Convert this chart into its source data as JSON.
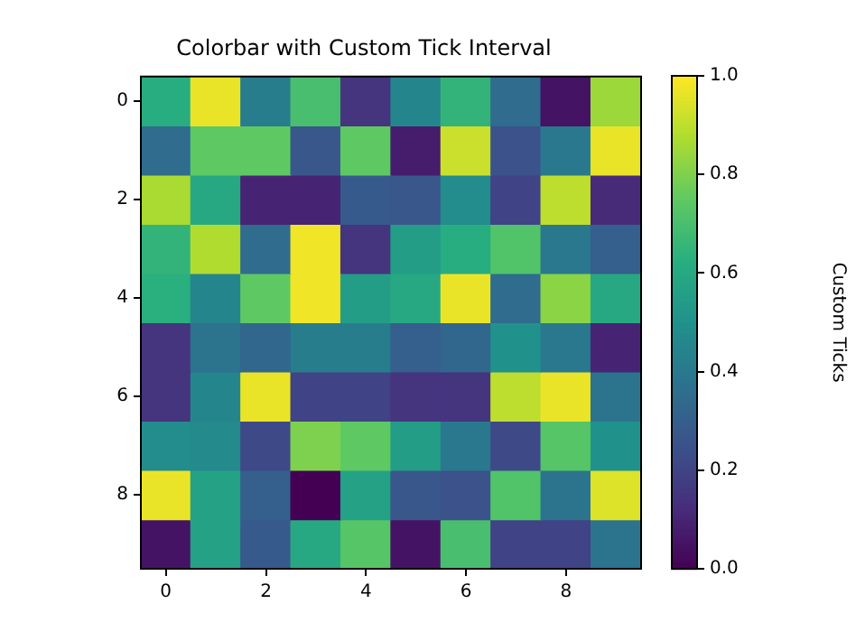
{
  "chart_data": {
    "type": "heatmap",
    "title": "Colorbar with Custom Tick Interval",
    "clabel": "Custom Ticks",
    "categories": [
      "0",
      null,
      "2",
      null,
      "4",
      null,
      "6",
      null,
      "8",
      null
    ],
    "y_categories": [
      "0",
      null,
      "2",
      null,
      "4",
      null,
      "6",
      null,
      "8",
      null
    ],
    "cells": [
      [
        0.62,
        0.97,
        0.42,
        0.7,
        0.15,
        0.45,
        0.65,
        0.35,
        0.05,
        0.85
      ],
      [
        0.35,
        0.75,
        0.75,
        0.27,
        0.75,
        0.08,
        0.92,
        0.25,
        0.4,
        0.97
      ],
      [
        0.87,
        0.6,
        0.1,
        0.1,
        0.28,
        0.27,
        0.48,
        0.2,
        0.9,
        0.12
      ],
      [
        0.65,
        0.88,
        0.35,
        0.98,
        0.15,
        0.55,
        0.62,
        0.72,
        0.4,
        0.3
      ],
      [
        0.63,
        0.45,
        0.75,
        0.98,
        0.55,
        0.6,
        0.97,
        0.35,
        0.82,
        0.6
      ],
      [
        0.15,
        0.38,
        0.33,
        0.42,
        0.42,
        0.3,
        0.33,
        0.5,
        0.4,
        0.1
      ],
      [
        0.15,
        0.45,
        0.97,
        0.2,
        0.2,
        0.15,
        0.15,
        0.9,
        0.97,
        0.38
      ],
      [
        0.48,
        0.47,
        0.22,
        0.8,
        0.75,
        0.55,
        0.4,
        0.22,
        0.73,
        0.5
      ],
      [
        0.97,
        0.57,
        0.3,
        0.0,
        0.57,
        0.27,
        0.25,
        0.72,
        0.38,
        0.95
      ],
      [
        0.05,
        0.57,
        0.28,
        0.6,
        0.73,
        0.05,
        0.7,
        0.2,
        0.2,
        0.38
      ]
    ],
    "clim": [
      0,
      1
    ],
    "cticks": [
      {
        "value": 0,
        "label": "0.0"
      },
      0.2,
      0.4,
      0.6,
      0.8,
      {
        "value": 1,
        "label": "1.0"
      }
    ]
  }
}
